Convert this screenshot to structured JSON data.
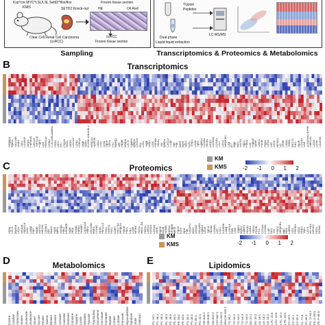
{
  "panel_a": {
    "left_box": {
      "mouse_header": "Ksp^cre MYC^LSL/LSL Setd2^flox/flox",
      "model_label": "KMS",
      "knockout_label": "SETD2  Knock-out",
      "frozen_top": "Frozen tissue section",
      "stain_he": "HE",
      "stain_oil": "Oil Red",
      "tumor_label": "Clear Cell Renal Cell Carcinoma",
      "tumor_abbrev": "(ccRCC)",
      "ccrcc_label": "ccRCC",
      "frozen_bottom": "Frozen tissue section",
      "section_title": "Sampling"
    },
    "right_box": {
      "trypsin": "Trypsin",
      "peptides": "Peptides",
      "dual_phase": "Dual phase",
      "liquid_extraction": "Liquid-liquid extraction",
      "lcms": "LC-MS/MS",
      "section_title": "Transcriptomics & Proteomics & Metabolomics"
    }
  },
  "panels": [
    {
      "id": "B",
      "title": "Transcriptomics",
      "legend": {
        "km": "KM",
        "kms": "KMS"
      },
      "colorbar_ticks": [
        "-2",
        "-1",
        "0",
        "1",
        "2"
      ],
      "genes": [
        "Arfgap3",
        "Itga11",
        "Slc22a8",
        "Gbp4",
        "Tns3",
        "Cd300lf",
        "Ulbp1",
        "Fam83d",
        "Clec2d",
        "Trim12a",
        "Fcgr4",
        "Ly6i",
        "Rasl11b",
        "Gsta3",
        "LOC100038882",
        "Prtn3",
        "Glb1",
        "Krt7",
        "Psg29",
        "Nav1",
        "Sntb1",
        "Ccl21a",
        "Cpa3",
        "Fcer1a",
        "Srgn",
        "Upp1",
        "KSR8-1063D8.2",
        "Mmp10",
        "Gpnmb",
        "Cd52",
        "Ccl5",
        "Ly6a",
        "Sgce",
        "Tpm1",
        "Fn1",
        "Mpeg1",
        "Sell",
        "Pdgfrl",
        "Mfap5",
        "Cd74",
        "Lgals9",
        "Igfbp5",
        "Cxcl16",
        "Ifit3",
        "Lcn2",
        "Tagln",
        "Gbp2",
        "Ctss",
        "Psmb8",
        "Thbs1",
        "Tnc",
        "Igfbp3",
        "Cxcl13",
        "C1qb",
        "Slpi",
        "Plat",
        "Mest",
        "Myl9",
        "Spp1",
        "Lyz2",
        "Timp1",
        "Cd44",
        "Tgfbi",
        "Lgals3",
        "Col3a1",
        "Anxa1",
        "Emp1",
        "S100a4",
        "Col1a2",
        "Ccl2",
        "Cd14",
        "Serpine1",
        "Ctgf",
        "Irf7",
        "Mgp",
        "Bst2",
        "Socs3",
        "Aqp1",
        "Plac8",
        "Lox",
        "Fcgr2b",
        "Sparc",
        "Cdh11",
        "Postn",
        "Ptgs2",
        "Cyr61",
        "Vim",
        "Sox9",
        "Hmox1",
        "Cp",
        "Osmr",
        "Cald1",
        "Tead1",
        "Wnt7b",
        "Klk1",
        "Apoe",
        "Col1a1",
        "Gsn",
        "1110059G10Rik",
        "Aldh1a1",
        "Cldn4",
        "Cd38",
        "Cd209a"
      ]
    },
    {
      "id": "C",
      "title": "Proteomics",
      "legend": {
        "km": "KM",
        "kms": "KMS"
      },
      "colorbar_ticks": [
        "-2",
        "-1",
        "0",
        "1",
        "2"
      ],
      "genes": [
        "Atp5j",
        "Cd73",
        "Myo5a",
        "Cryl1",
        "Slc4a4",
        "Atp6v1a",
        "Got2",
        "Clqbp",
        "Pah",
        "Hadh",
        "Sorcs3",
        "Akr1a1",
        "Cyb5r3",
        "Dld",
        "Hacl1",
        "Aspn",
        "Bdh1",
        "Suclg1",
        "Pdk2",
        "Ehhadh",
        "Ugt8",
        "Abat",
        "Acaa2",
        "Fabp1",
        "Acadm",
        "Cyp4a14",
        "Aldh2",
        "Slc22a6",
        "Mdh1",
        "Cox5b",
        "Gpd1",
        "Akr1c14",
        "Pck1",
        "Acsm2",
        "Ass1",
        "Gatm",
        "Slc27a2",
        "Hmgcs2",
        "Aldob",
        "Fbp1",
        "Lrp2",
        "Cubn",
        "Nme4",
        "Acot1",
        "Hsd17b4",
        "Pdzk1",
        "Cdh16",
        "Kcnj16",
        "Ces1d",
        "Sord",
        "Agxt2",
        "Glyat",
        "Acads",
        "Ephx2",
        "Dmgdh",
        "Bhmt",
        "Pipox",
        "Kmo",
        "Hpd",
        "Fah",
        "Cyp2e1",
        "Miox",
        "Slc5a2",
        "Slc34a1",
        "Lgals3",
        "Cd44",
        "Tgm2",
        "Anxa2",
        "Col6a1",
        "Vim",
        "Lcp1",
        "S100a6",
        "Capg",
        "Coro1a",
        "Plek",
        "Ctsb",
        "Tagln2",
        "Myh9",
        "Lgals1",
        "Anxa1",
        "Cald1",
        "Thbs1",
        "Postn",
        "Fn1",
        "Col1a1",
        "Col3a1",
        "Lum",
        "Dcn",
        "Tnc",
        "Fbln2",
        "Serpinh1",
        "Bgn",
        "Nid1",
        "Lamb2",
        "Ctsz",
        "Psmb9",
        "Stat1",
        "Gbp2",
        "Tap1",
        "Cd74",
        "H2-Ab1",
        "Eef1b2",
        "Dbn1",
        "Dock2"
      ]
    },
    {
      "id": "D",
      "title": "Metabolomics",
      "features": [
        "Inosine",
        "Cytidine",
        "Adenosine",
        "Uridine",
        "Glutamate",
        "Glutamine",
        "Serine",
        "Glycine",
        "Proline",
        "Taurine",
        "Betaine",
        "Choline",
        "Creatine",
        "Carnitine",
        "Ornithine",
        "Citrulline",
        "Arginine",
        "Lysine",
        "Histidine",
        "Tyrosine",
        "Tryptophan",
        "Kynurenine",
        "Succinate",
        "Fumarate",
        "Malate",
        "Citrate",
        "Lactate",
        "Pyruvate",
        "Hypoxanthine",
        "Xanthine",
        "Urate",
        "Allantoin"
      ]
    },
    {
      "id": "E",
      "title": "Lipidomics",
      "features": [
        "PC 34:1",
        "PC 36:2",
        "PC 36:4",
        "PC 38:4",
        "PC 38:6",
        "PE 36:2",
        "PE 38:4",
        "PE 40:6",
        "PS 36:1",
        "PS 38:4",
        "PI 38:4",
        "PG 34:1",
        "SM d34:1",
        "SM d36:1",
        "SM d42:2",
        "Cer d42:1",
        "Cer d42:2",
        "HexCer d42:1",
        "TG 50:1",
        "TG 52:2",
        "TG 52:3",
        "TG 54:3",
        "TG 54:4",
        "DG 34:1",
        "DG 36:2",
        "CE 18:1",
        "CE 18:2",
        "CE 20:4",
        "LPC 16:0",
        "LPC 18:0",
        "LPC 18:1",
        "LPE 18:0",
        "FA 16:0",
        "FA 18:1",
        "FA 20:4",
        "CL 72:8",
        "PA 36:2",
        "PC O-34:1",
        "PE O-38:5",
        "PE P-40:6"
      ]
    }
  ],
  "colors": {
    "km": "#9a9a9a",
    "kms": "#c9955b",
    "low": "#2b3fb0",
    "mid": "#f7f7f7",
    "high": "#c4232b"
  }
}
